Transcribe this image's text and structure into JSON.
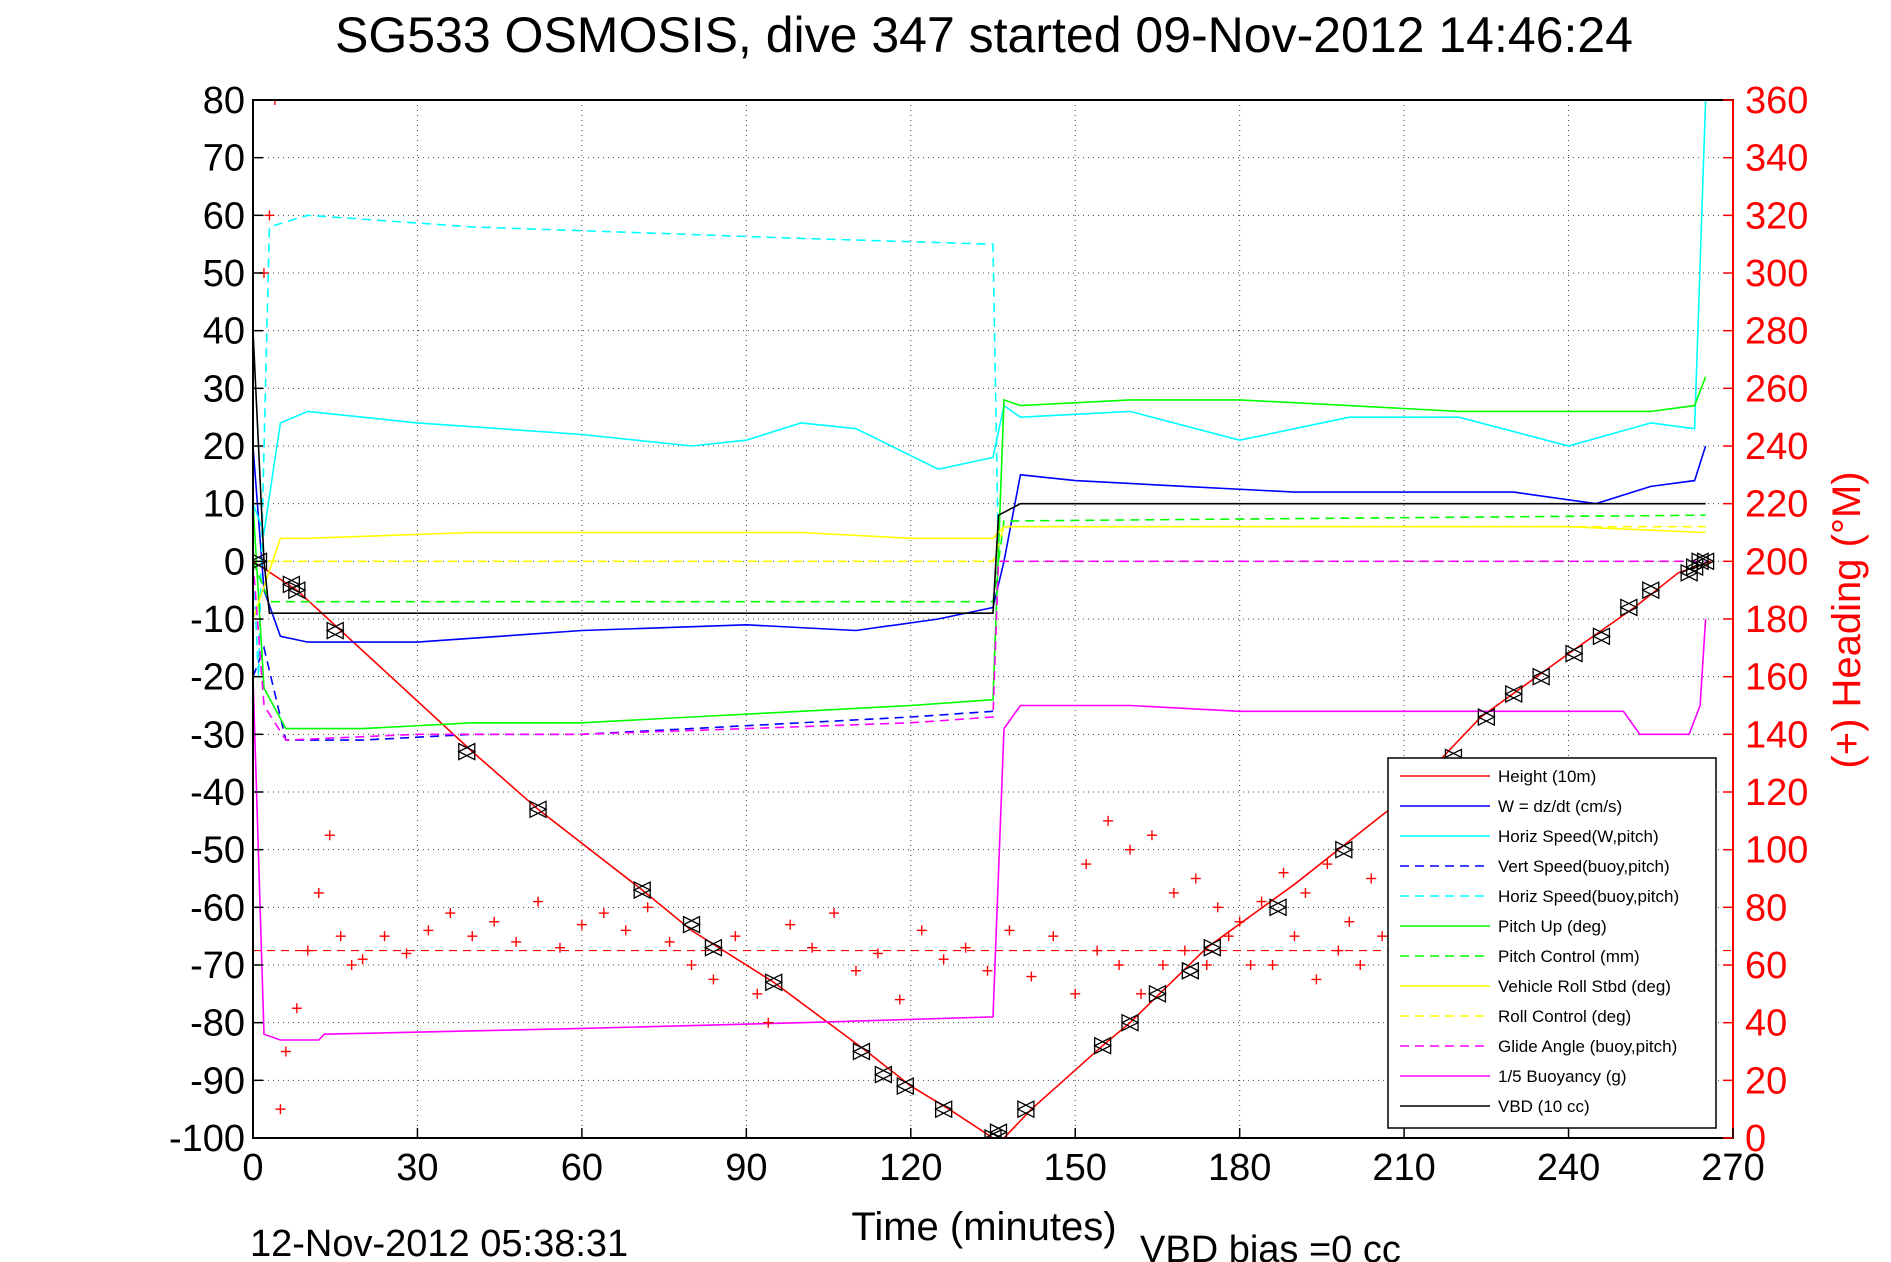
{
  "chart_data": {
    "type": "line",
    "title": "SG533 OSMOSIS, dive 347 started 09-Nov-2012 14:46:24",
    "xlabel": "Time (minutes)",
    "ylabel_right": "(+) Heading (°M)",
    "footer_left": "12-Nov-2012 05:38:31",
    "footer_right": "VBD bias =0 cc",
    "xlim": [
      0,
      270
    ],
    "ylim_left": [
      -100,
      80
    ],
    "ylim_right": [
      0,
      360
    ],
    "xticks": [
      "0",
      "30",
      "60",
      "90",
      "120",
      "150",
      "180",
      "210",
      "240",
      "270"
    ],
    "yticks_left": [
      "80",
      "70",
      "60",
      "50",
      "40",
      "30",
      "20",
      "10",
      "0",
      "-10",
      "-20",
      "-30",
      "-40",
      "-50",
      "-60",
      "-70",
      "-80",
      "-90",
      "-100"
    ],
    "yticks_right": [
      "360",
      "340",
      "320",
      "300",
      "280",
      "260",
      "240",
      "220",
      "200",
      "180",
      "160",
      "140",
      "120",
      "100",
      "80",
      "60",
      "40",
      "20",
      "0"
    ],
    "grid": true,
    "legend_position": "bottom-right",
    "colors": {
      "red": "#ff0000",
      "blue": "#0000ff",
      "cyan": "#00ffff",
      "green": "#00ff00",
      "yellow": "#ffff00",
      "magenta": "#ff00ff",
      "black": "#000000"
    },
    "series": [
      {
        "name": "Height (10m)",
        "color": "#ff0000",
        "style": "solid",
        "x": [
          0,
          8,
          16,
          40,
          52,
          71,
          80,
          95,
          112,
          120,
          127,
          135,
          137,
          142,
          155,
          160,
          174,
          190,
          210,
          224,
          240,
          252,
          260,
          266
        ],
        "y": [
          0,
          -5,
          -12,
          -33,
          -43,
          -57,
          -64,
          -73,
          -85,
          -91,
          -95,
          -100,
          -100,
          -95,
          -84,
          -80,
          -67,
          -56,
          -41,
          -27,
          -16,
          -8,
          -2,
          0
        ]
      },
      {
        "name": "W = dz/dt (cm/s)",
        "color": "#0000ff",
        "style": "solid",
        "x": [
          0,
          2,
          5,
          10,
          30,
          60,
          90,
          110,
          125,
          135,
          137,
          140,
          150,
          170,
          190,
          210,
          230,
          245,
          255,
          263,
          265
        ],
        "y": [
          20,
          -5,
          -13,
          -14,
          -14,
          -12,
          -11,
          -12,
          -10,
          -8,
          0,
          15,
          14,
          13,
          12,
          12,
          12,
          10,
          13,
          14,
          20
        ]
      },
      {
        "name": "Horiz Speed(W,pitch)",
        "color": "#00ffff",
        "style": "solid",
        "x": [
          0,
          2,
          5,
          10,
          30,
          60,
          80,
          90,
          100,
          110,
          125,
          135,
          137,
          140,
          160,
          180,
          200,
          220,
          240,
          255,
          263,
          265
        ],
        "y": [
          10,
          5,
          24,
          26,
          24,
          22,
          20,
          21,
          24,
          23,
          16,
          18,
          27,
          25,
          26,
          21,
          25,
          25,
          20,
          24,
          23,
          80
        ]
      },
      {
        "name": "Vert Speed(buoy,pitch)",
        "color": "#0000ff",
        "style": "dashed",
        "x": [
          0,
          2,
          6,
          20,
          40,
          60,
          80,
          100,
          120,
          135
        ],
        "y": [
          -20,
          -15,
          -31,
          -31,
          -30,
          -30,
          -29,
          -28,
          -27,
          -26
        ]
      },
      {
        "name": "Horiz Speed(buoy,pitch)",
        "color": "#00ffff",
        "style": "dashed",
        "x": [
          0,
          1,
          3,
          10,
          40,
          70,
          100,
          135,
          136
        ],
        "y": [
          0,
          -20,
          58,
          60,
          58,
          57,
          56,
          55,
          0
        ]
      },
      {
        "name": "Pitch Up (deg)",
        "color": "#00ff00",
        "style": "solid",
        "x": [
          0,
          2,
          6,
          20,
          40,
          60,
          80,
          100,
          120,
          135,
          137,
          140,
          160,
          180,
          200,
          220,
          240,
          255,
          263,
          265
        ],
        "y": [
          10,
          -22,
          -29,
          -29,
          -28,
          -28,
          -27,
          -26,
          -25,
          -24,
          28,
          27,
          28,
          28,
          27,
          26,
          26,
          26,
          27,
          32
        ]
      },
      {
        "name": "Pitch Control (mm)",
        "color": "#00ff00",
        "style": "dashed",
        "x": [
          0,
          3,
          135,
          137,
          265
        ],
        "y": [
          0,
          -7,
          -7,
          7,
          8
        ]
      },
      {
        "name": "Vehicle Roll Stbd (deg)",
        "color": "#ffff00",
        "style": "solid",
        "x": [
          0,
          5,
          10,
          40,
          70,
          100,
          120,
          135,
          137,
          160,
          200,
          240,
          265
        ],
        "y": [
          -10,
          4,
          4,
          5,
          5,
          5,
          4,
          4,
          6,
          6,
          6,
          6,
          5
        ]
      },
      {
        "name": "Roll Control (deg)",
        "color": "#ffff00",
        "style": "dashed",
        "x": [
          0,
          3,
          135,
          137,
          265
        ],
        "y": [
          0,
          0,
          0,
          6,
          6
        ]
      },
      {
        "name": "Glide Angle (buoy,pitch)",
        "color": "#ff00ff",
        "style": "dashed",
        "x": [
          0,
          2,
          6,
          30,
          60,
          90,
          120,
          135,
          136,
          265
        ],
        "y": [
          0,
          -25,
          -31,
          -30,
          -30,
          -29,
          -28,
          -27,
          0,
          0
        ]
      },
      {
        "name": "1/5 Buoyancy (g)",
        "color": "#ff00ff",
        "style": "solid",
        "x": [
          0,
          2,
          5,
          12,
          13,
          60,
          100,
          135,
          137,
          140,
          160,
          180,
          200,
          250,
          253,
          262,
          264,
          265
        ],
        "y": [
          -20,
          -82,
          -83,
          -83,
          -82,
          -81,
          -80,
          -79,
          -29,
          -25,
          -25,
          -26,
          -26,
          -26,
          -30,
          -30,
          -25,
          -10
        ]
      },
      {
        "name": "VBD (10 cc)",
        "color": "#000000",
        "style": "solid",
        "x": [
          0,
          2,
          3,
          135,
          136,
          140,
          265
        ],
        "y": [
          40,
          0,
          -9,
          -9,
          8,
          10,
          10
        ]
      }
    ],
    "heading_series": {
      "color": "#ff0000",
      "marker": "+",
      "axis": "right",
      "x": [
        2,
        3,
        4,
        5,
        6,
        8,
        10,
        12,
        14,
        16,
        18,
        20,
        24,
        28,
        32,
        36,
        40,
        44,
        48,
        52,
        56,
        60,
        64,
        68,
        72,
        76,
        80,
        84,
        88,
        92,
        94,
        98,
        102,
        106,
        110,
        114,
        118,
        122,
        126,
        130,
        134,
        138,
        142,
        146,
        150,
        152,
        154,
        156,
        158,
        160,
        162,
        164,
        166,
        168,
        170,
        172,
        174,
        176,
        178,
        180,
        182,
        184,
        186,
        188,
        190,
        192,
        194,
        196,
        198,
        200,
        202,
        204,
        206,
        208,
        210,
        212,
        214,
        216,
        218,
        220,
        222,
        224,
        226,
        228,
        230,
        232,
        234,
        236,
        238,
        240,
        242,
        244,
        246,
        248,
        250,
        252,
        254,
        256,
        258,
        260
      ],
      "y": [
        300,
        320,
        360,
        10,
        30,
        45,
        65,
        85,
        105,
        70,
        60,
        62,
        70,
        64,
        72,
        78,
        70,
        75,
        68,
        82,
        66,
        74,
        78,
        72,
        80,
        68,
        60,
        55,
        70,
        50,
        40,
        74,
        66,
        78,
        58,
        64,
        48,
        72,
        62,
        66,
        58,
        72,
        56,
        70,
        50,
        95,
        65,
        110,
        60,
        100,
        50,
        105,
        60,
        85,
        65,
        90,
        60,
        80,
        70,
        75,
        60,
        82,
        60,
        92,
        70,
        85,
        55,
        95,
        65,
        75,
        60,
        90,
        70,
        80,
        105,
        65,
        85,
        70,
        100,
        60,
        95,
        65,
        85,
        75,
        60,
        95,
        70,
        80,
        60,
        85,
        70,
        90,
        65,
        80,
        75,
        70,
        85,
        100,
        80,
        95
      ],
      "reference_line": 65
    },
    "triangle_markers": {
      "color": "#000000",
      "x": [
        1,
        7,
        8,
        15,
        39,
        52,
        71,
        80,
        84,
        95,
        111,
        115,
        119,
        126,
        135,
        136,
        141,
        155,
        160,
        165,
        171,
        175,
        187,
        199,
        209,
        219,
        225,
        230,
        235,
        241,
        246,
        251,
        255,
        262,
        263,
        264,
        265
      ],
      "y": [
        0,
        -4,
        -5,
        -12,
        -33,
        -43,
        -57,
        -63,
        -67,
        -73,
        -85,
        -89,
        -91,
        -95,
        -100,
        -99,
        -95,
        -84,
        -80,
        -75,
        -71,
        -67,
        -60,
        -50,
        -41,
        -34,
        -27,
        -23,
        -20,
        -16,
        -13,
        -8,
        -5,
        -2,
        -1,
        0,
        0
      ]
    }
  }
}
